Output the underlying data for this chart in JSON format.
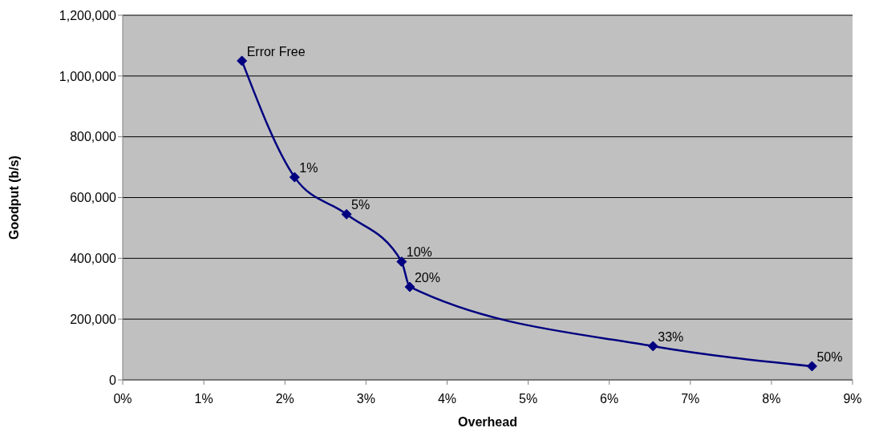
{
  "chart_data": {
    "type": "line",
    "xlabel": "Overhead",
    "ylabel": "Goodput (b/s)",
    "x": [
      1.47,
      2.12,
      2.76,
      3.44,
      3.54,
      6.54,
      8.5
    ],
    "series": [
      {
        "color": "#000080",
        "values": [
          1050000,
          667000,
          545000,
          389000,
          306000,
          111000,
          45000
        ]
      }
    ],
    "xlim": [
      0,
      9
    ],
    "xticks": [
      {
        "value": 0,
        "label": "0%"
      },
      {
        "value": 1,
        "label": "1%"
      },
      {
        "value": 2,
        "label": "2%"
      },
      {
        "value": 3,
        "label": "3%"
      },
      {
        "value": 4,
        "label": "4%"
      },
      {
        "value": 5,
        "label": "5%"
      },
      {
        "value": 6,
        "label": "6%"
      },
      {
        "value": 7,
        "label": "7%"
      },
      {
        "value": 8,
        "label": "8%"
      },
      {
        "value": 9,
        "label": "9%"
      }
    ],
    "ylim": [
      0,
      1200000
    ],
    "yticks": [
      0,
      {
        "value": 200000,
        "label": "200,000"
      },
      {
        "value": 400000,
        "label": "400,000"
      },
      {
        "value": 600000,
        "label": "600,000"
      },
      {
        "value": 800000,
        "label": "800,000"
      },
      {
        "value": 1000000,
        "label": "1,000,000"
      },
      {
        "value": 1200000,
        "label": "1,200,000"
      }
    ],
    "annotations": [
      {
        "text": "Error Free",
        "x": 1.47,
        "y": 1050000
      },
      {
        "text": "1%",
        "x": 2.12,
        "y": 667000
      },
      {
        "text": "5%",
        "x": 2.76,
        "y": 545000
      },
      {
        "text": "10%",
        "x": 3.44,
        "y": 389000
      },
      {
        "text": "20%",
        "x": 3.54,
        "y": 306000
      },
      {
        "text": "33%",
        "x": 6.54,
        "y": 111000
      },
      {
        "text": "50%",
        "x": 8.5,
        "y": 45000
      }
    ],
    "grid": "y",
    "marker": "diamond",
    "line_style": "solid",
    "legend": false
  }
}
